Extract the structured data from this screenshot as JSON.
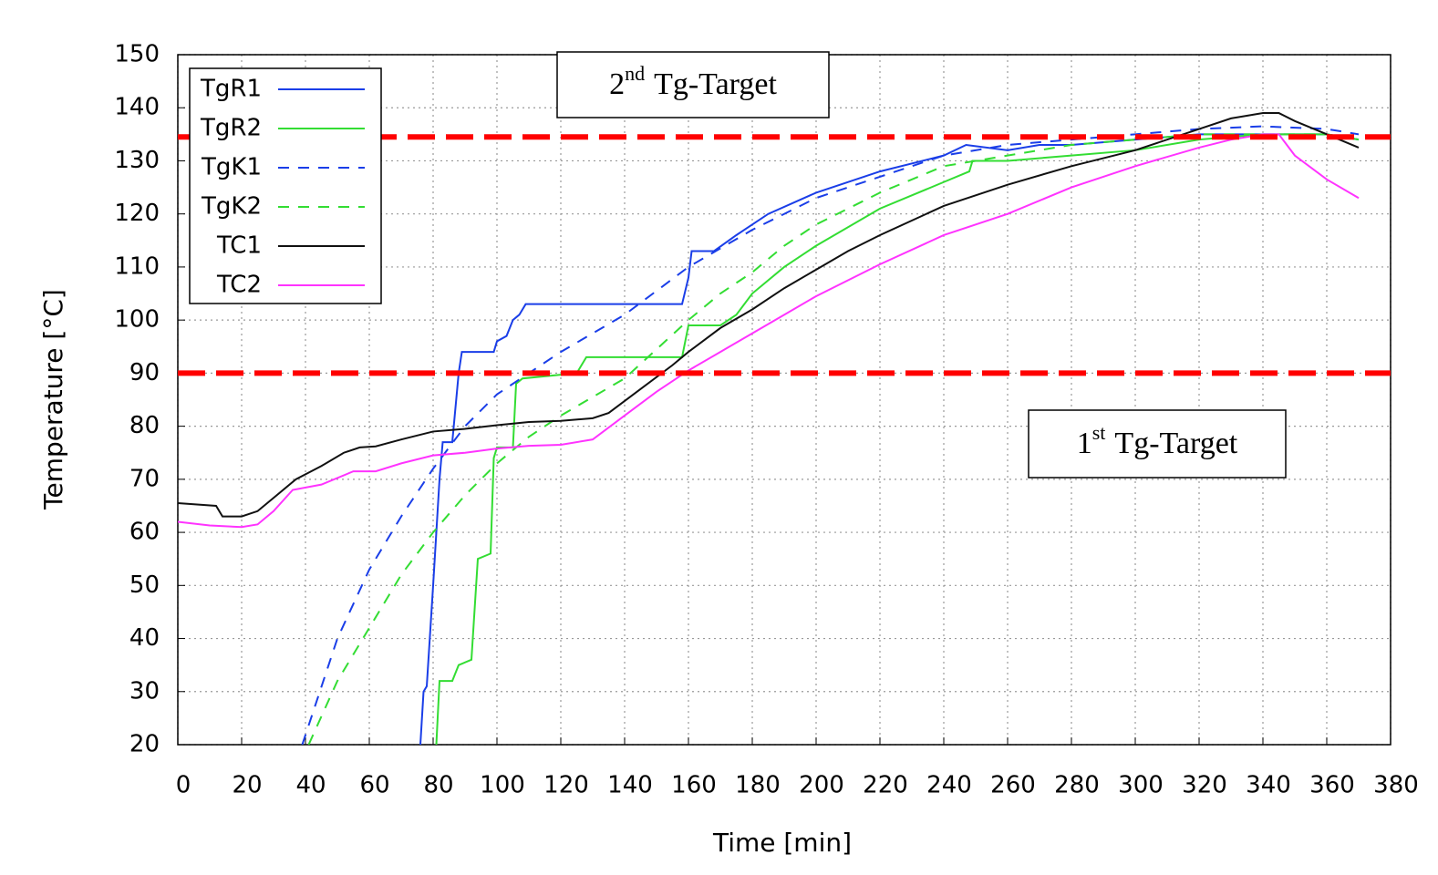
{
  "chart_data": {
    "type": "line",
    "x_label": "Time [min]",
    "y_label": "Temperature [°C]",
    "xlim": [
      0,
      380
    ],
    "xticks": [
      0,
      20,
      40,
      60,
      80,
      100,
      120,
      140,
      160,
      180,
      200,
      220,
      240,
      260,
      280,
      300,
      320,
      340,
      360,
      380
    ],
    "ylim": [
      20,
      150
    ],
    "yticks": [
      20,
      30,
      40,
      50,
      60,
      70,
      80,
      90,
      100,
      110,
      120,
      130,
      140,
      150
    ],
    "grid": true,
    "legend": "upper left",
    "hlines": [
      {
        "y": 90,
        "color": "#ff0000"
      },
      {
        "y": 134.5,
        "color": "#ff0000"
      }
    ],
    "annotations": [
      {
        "number": "2",
        "suffix": "nd",
        "text": "Tg-Target"
      },
      {
        "number": "1",
        "suffix": "st",
        "text": "Tg-Target"
      }
    ],
    "series": [
      {
        "name": "TgR1",
        "color": "#1a3ee8",
        "dash": false,
        "x": [
          76,
          77,
          78,
          80,
          82,
          83,
          86,
          88,
          89,
          95,
          99,
          100,
          103,
          105,
          107,
          109,
          158,
          160,
          161,
          168,
          175,
          185,
          200,
          220,
          240,
          247,
          260,
          270,
          280,
          300,
          320,
          340,
          360,
          370
        ],
        "values": [
          20,
          30,
          31,
          50,
          70,
          77,
          77,
          90,
          94,
          94,
          94,
          96,
          97,
          100,
          101,
          103,
          103,
          108,
          113,
          113,
          116,
          120,
          124,
          128,
          131,
          133,
          132,
          133,
          133,
          134,
          135,
          135,
          135,
          134
        ]
      },
      {
        "name": "TgR2",
        "color": "#33dd33",
        "dash": false,
        "x": [
          81,
          82,
          86,
          88,
          92,
          94,
          98,
          99,
          100,
          105,
          106,
          108,
          125,
          128,
          158,
          160,
          170,
          175,
          180,
          190,
          200,
          220,
          240,
          248,
          249,
          260,
          280,
          300,
          320,
          340,
          360,
          370
        ],
        "values": [
          20,
          32,
          32,
          35,
          36,
          55,
          56,
          74,
          76,
          76,
          88,
          89,
          90,
          93,
          93,
          99,
          99,
          101,
          105,
          110,
          114,
          121,
          126,
          128,
          130,
          130,
          131,
          132,
          134,
          135,
          135,
          134
        ]
      },
      {
        "name": "TgK1",
        "color": "#1a3ee8",
        "dash": true,
        "x": [
          39,
          50,
          60,
          70,
          80,
          90,
          100,
          120,
          140,
          160,
          180,
          200,
          220,
          240,
          260,
          280,
          300,
          320,
          340,
          360,
          370
        ],
        "values": [
          20,
          40,
          53,
          63,
          72,
          80,
          86,
          94,
          101,
          110,
          117,
          123,
          127,
          131,
          133,
          134,
          135,
          136,
          136.5,
          136,
          135
        ]
      },
      {
        "name": "TgK2",
        "color": "#33dd33",
        "dash": true,
        "x": [
          41,
          50,
          60,
          70,
          80,
          90,
          100,
          110,
          120,
          140,
          160,
          170,
          180,
          190,
          200,
          220,
          240,
          260,
          280,
          300,
          320,
          340,
          360,
          370
        ],
        "values": [
          20,
          32,
          42,
          52,
          60,
          67,
          73,
          78,
          82,
          89,
          100,
          105,
          109,
          114,
          118,
          124,
          129,
          131,
          133,
          134,
          135,
          135,
          135,
          134
        ]
      },
      {
        "name": "TC1",
        "color": "#111111",
        "dash": false,
        "x": [
          0,
          12,
          14,
          20,
          25,
          30,
          37,
          45,
          52,
          57,
          62,
          70,
          80,
          90,
          100,
          110,
          120,
          130,
          135,
          145,
          155,
          160,
          170,
          180,
          190,
          200,
          210,
          220,
          240,
          260,
          280,
          300,
          320,
          330,
          340,
          345,
          350,
          360,
          370
        ],
        "values": [
          65.5,
          65,
          63,
          63,
          64,
          66.5,
          70,
          72.5,
          75,
          76,
          76.2,
          77.5,
          79,
          79.5,
          80.2,
          80.8,
          81,
          81.5,
          82.5,
          87,
          91.5,
          94,
          98.5,
          102,
          106,
          109.5,
          113,
          116,
          121.5,
          125.5,
          129,
          132,
          136,
          138,
          139,
          139,
          137.5,
          135,
          132.5
        ]
      },
      {
        "name": "TC2",
        "color": "#ff33ff",
        "dash": false,
        "x": [
          0,
          10,
          20,
          25,
          30,
          36,
          45,
          55,
          62,
          70,
          80,
          90,
          100,
          110,
          120,
          130,
          140,
          150,
          160,
          170,
          180,
          190,
          200,
          220,
          240,
          260,
          280,
          300,
          320,
          330,
          340,
          345,
          350,
          360,
          370
        ],
        "values": [
          62,
          61.3,
          61,
          61.5,
          64,
          68,
          69,
          71.5,
          71.5,
          73,
          74.5,
          75,
          75.8,
          76.3,
          76.5,
          77.5,
          82,
          86.5,
          90.5,
          94,
          97.5,
          101,
          104.5,
          110.5,
          116,
          120,
          125,
          129,
          132.5,
          134,
          135,
          135,
          131,
          126.5,
          123
        ]
      }
    ]
  }
}
